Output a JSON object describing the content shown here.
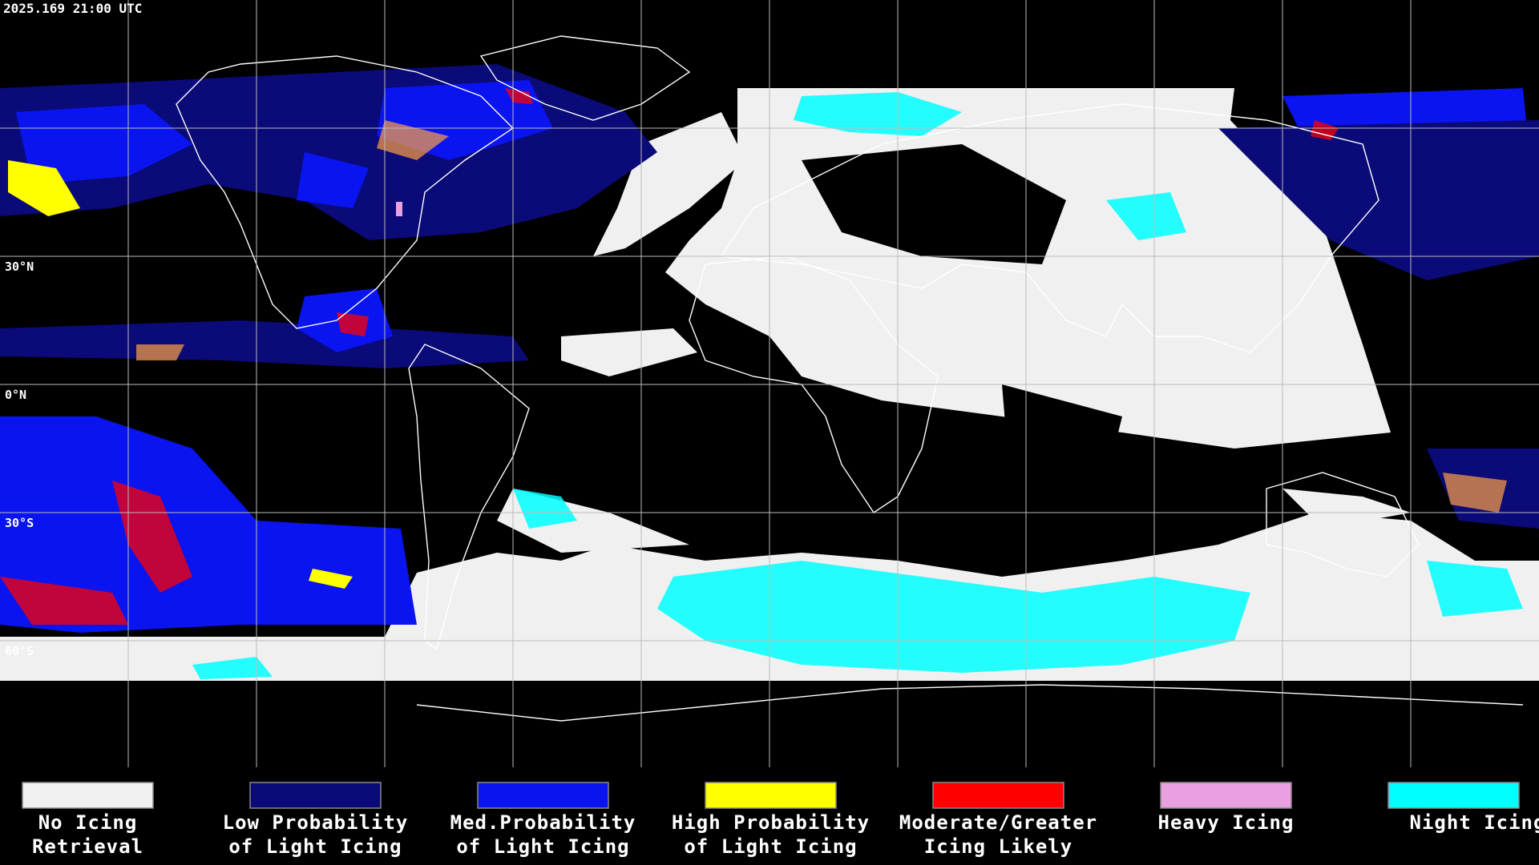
{
  "timestamp": "2025.169 21:00 UTC",
  "latitude_labels": [
    "30°N",
    "0°N",
    "30°S",
    "60°S"
  ],
  "legend": [
    {
      "lines": [
        "No Icing",
        "Retrieval"
      ],
      "color": "#f0f0f0"
    },
    {
      "lines": [
        "Low Probability",
        "of Light Icing"
      ],
      "color": "#0a0a78"
    },
    {
      "lines": [
        "Med.Probability",
        "of Light Icing"
      ],
      "color": "#0a14f0"
    },
    {
      "lines": [
        "High Probability",
        "of Light Icing"
      ],
      "color": "#ffff00"
    },
    {
      "lines": [
        "Moderate/Greater",
        "Icing Likely"
      ],
      "color": "#ff0000"
    },
    {
      "lines": [
        "Heavy Icing"
      ],
      "color": "#e8a0e0"
    },
    {
      "lines": [
        "Night Icing"
      ],
      "color": "#00ffff"
    }
  ]
}
